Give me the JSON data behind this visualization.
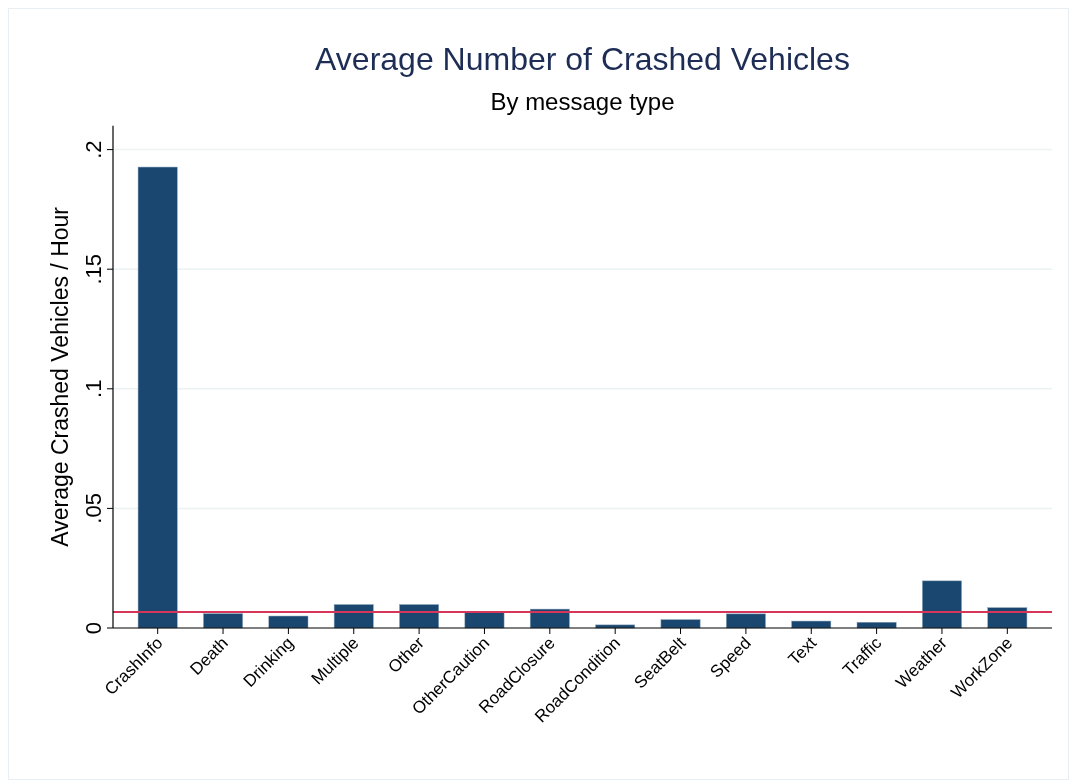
{
  "chart_data": {
    "type": "bar",
    "title": "Average Number of Crashed Vehicles",
    "subtitle": "By message type",
    "ylabel": "Average Crashed Vehicles / Hour",
    "categories": [
      "CrashInfo",
      "Death",
      "Drinking",
      "Multiple",
      "Other",
      "OtherCaution",
      "RoadClosure",
      "RoadCondition",
      "SeatBelt",
      "Speed",
      "Text",
      "Traffic",
      "Weather",
      "WorkZone"
    ],
    "values": [
      0.1927,
      0.006,
      0.005,
      0.0098,
      0.0098,
      0.0067,
      0.0079,
      0.0013,
      0.0035,
      0.0059,
      0.0029,
      0.0024,
      0.0197,
      0.0085
    ],
    "color": "#1a476f",
    "ylim": [
      0,
      0.21
    ],
    "yticks": [
      {
        "value": 0,
        "label": "0"
      },
      {
        "value": 0.05,
        "label": ".05"
      },
      {
        "value": 0.1,
        "label": ".1"
      },
      {
        "value": 0.15,
        "label": ".15"
      },
      {
        "value": 0.2,
        "label": ".2"
      }
    ],
    "grid": "y",
    "ref_lines": [
      {
        "axis": "y",
        "value": 0.0067,
        "color": "#d6365a"
      }
    ]
  }
}
